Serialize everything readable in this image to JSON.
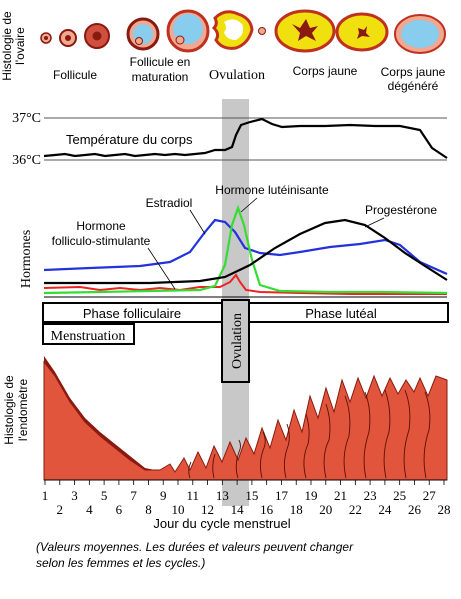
{
  "ovary": {
    "side_label_1": "Histologie de",
    "side_label_2": "l'ovaire",
    "stages": {
      "follicle": "Follicule",
      "maturing_1": "Follicule en",
      "maturing_2": "maturation",
      "ovulation": "Ovulation",
      "corpus_luteum": "Corps jaune",
      "degenerate_1": "Corps jaune",
      "degenerate_2": "dégénéré"
    }
  },
  "temperature": {
    "tick_high": "37°C",
    "tick_low": "36°C",
    "label": "Température du corps"
  },
  "hormones": {
    "axis_label": "Hormones",
    "fsh_1": "Hormone",
    "fsh_2": "folliculo-stimulante",
    "estradiol": "Estradiol",
    "lh": "Hormone lutéinisante",
    "progesterone": "Progestérone"
  },
  "phases": {
    "follicular": "Phase folliculaire",
    "luteal": "Phase lutéal",
    "menstruation": "Menstruation",
    "ovulation": "Ovulation"
  },
  "endometrium": {
    "side_label_1": "Histologie de",
    "side_label_2": "l'endomètre"
  },
  "x_axis": {
    "label": "Jour du cycle menstruel",
    "days": [
      "1",
      "2",
      "3",
      "4",
      "5",
      "6",
      "7",
      "8",
      "9",
      "10",
      "11",
      "12",
      "13",
      "14",
      "15",
      "16",
      "17",
      "18",
      "19",
      "20",
      "21",
      "22",
      "23",
      "24",
      "25",
      "26",
      "27",
      "28"
    ]
  },
  "footnote": {
    "line1": "(Valeurs moyennes. Les durées et valeurs peuvent changer",
    "line2": "selon les femmes et les cycles.)"
  },
  "colors": {
    "temperature": "#000000",
    "estradiol": "#2233dd",
    "lh": "#33dd33",
    "fsh": "#ee2222",
    "progesterone": "#000000",
    "endometrium": "#e0553b",
    "endometrium_dark": "#8a1a10",
    "corpus_luteum": "#f0e010",
    "follicle_fill": "#88ccee",
    "ovulation_band": "#c8c8c8"
  }
}
